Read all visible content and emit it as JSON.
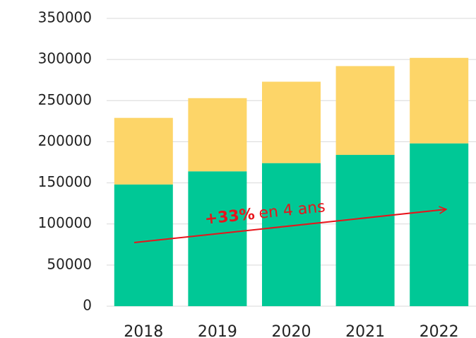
{
  "chart_data": {
    "type": "stacked_bar",
    "categories": [
      "2018",
      "2019",
      "2020",
      "2021",
      "2022"
    ],
    "series": [
      {
        "color": "#00c896",
        "values": [
          148000,
          164000,
          174000,
          184000,
          198000
        ]
      },
      {
        "color": "#fdd568",
        "values": [
          81000,
          89000,
          99000,
          108000,
          104000
        ]
      }
    ],
    "ylim": [
      0,
      350000
    ],
    "yticks": [
      0,
      50000,
      100000,
      150000,
      200000,
      250000,
      300000,
      350000
    ],
    "grid": true,
    "annotation": [
      "+33%",
      "en 4 ans"
    ]
  }
}
